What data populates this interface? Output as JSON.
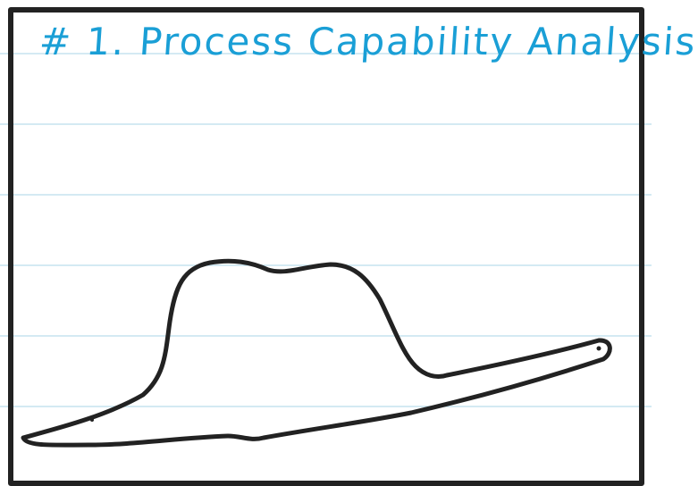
{
  "title": "# 1. Process Capability Analysis",
  "colors": {
    "title_ink": "#1a9fd6",
    "sketch_ink": "#222222",
    "ruled_line": "#c6e3ef",
    "background": "#ffffff"
  },
  "drawing": "hand-drawn-hat-shaped-curve"
}
